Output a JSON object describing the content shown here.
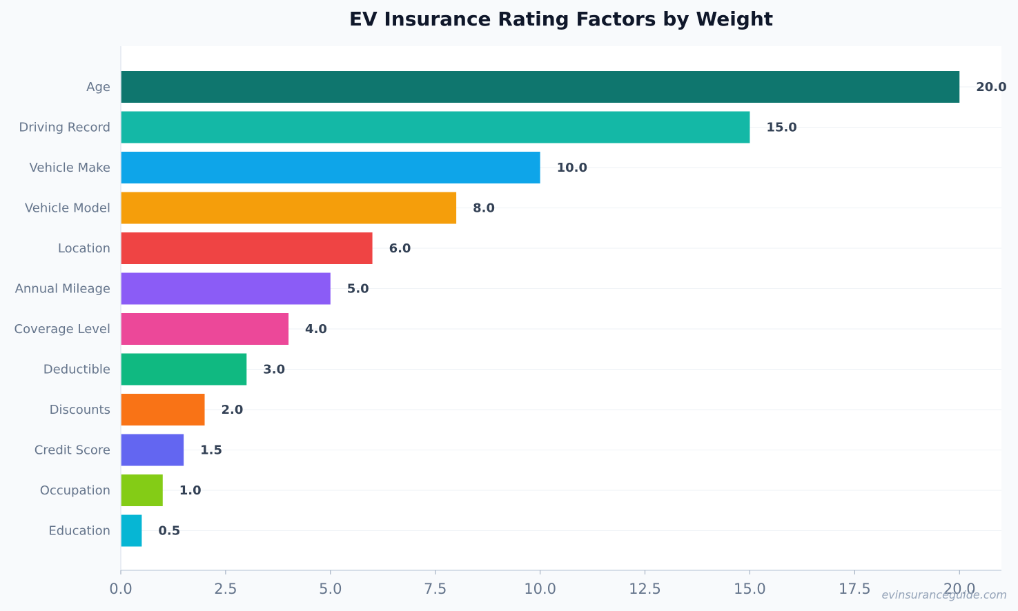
{
  "chart_data": {
    "type": "bar",
    "orientation": "horizontal",
    "title": "EV Insurance Rating Factors by Weight",
    "xlabel": "",
    "ylabel": "",
    "xlim": [
      0,
      21
    ],
    "x_ticks": [
      "0.0",
      "2.5",
      "5.0",
      "7.5",
      "10.0",
      "12.5",
      "15.0",
      "17.5",
      "20.0"
    ],
    "grid": "horizontal lines at each bar",
    "categories": [
      "Age",
      "Driving Record",
      "Vehicle Make",
      "Vehicle Model",
      "Location",
      "Annual Mileage",
      "Coverage Level",
      "Deductible",
      "Discounts",
      "Credit Score",
      "Occupation",
      "Education"
    ],
    "values": [
      20.0,
      15.0,
      10.0,
      8.0,
      6.0,
      5.0,
      4.0,
      3.0,
      2.0,
      1.5,
      1.0,
      0.5
    ],
    "value_labels": [
      "20.0",
      "15.0",
      "10.0",
      "8.0",
      "6.0",
      "5.0",
      "4.0",
      "3.0",
      "2.0",
      "1.5",
      "1.0",
      "0.5"
    ],
    "colors": [
      "#0f766e",
      "#14b8a6",
      "#0ea5e9",
      "#f59e0b",
      "#ef4444",
      "#8b5cf6",
      "#ec4899",
      "#10b981",
      "#f97316",
      "#6366f1",
      "#84cc16",
      "#06b6d4"
    ]
  },
  "watermark": "evinsuranceguide.com"
}
